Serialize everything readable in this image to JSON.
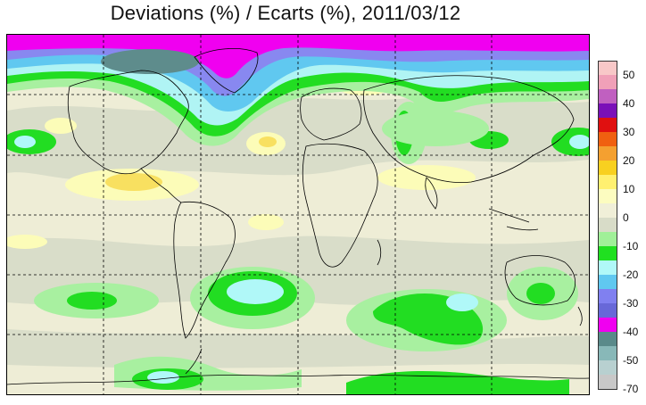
{
  "title": "Deviations (%) / Ecarts (%), 2011/03/12",
  "legend": {
    "labels": [
      "50",
      "40",
      "30",
      "20",
      "10",
      "0",
      "-10",
      "-20",
      "-30",
      "-40",
      "-50",
      "-70"
    ],
    "colors": [
      "#f8c8c8",
      "#f0a0b8",
      "#c060c0",
      "#7a10b8",
      "#e01010",
      "#f06010",
      "#f4a030",
      "#f8d020",
      "#fff070",
      "#fcfcc0",
      "#f0efd8",
      "#d8dcc8",
      "#a0f098",
      "#20e020",
      "#b0f8f8",
      "#60c8f0",
      "#8080f0",
      "#6868d8",
      "#f000f0",
      "#5a8a8a",
      "#88b8b8",
      "#b8d0d0",
      "#c8c8c8"
    ]
  },
  "map": {
    "background": "#efeed8",
    "grid_color": "#000000",
    "coastline_color": "#000000"
  }
}
